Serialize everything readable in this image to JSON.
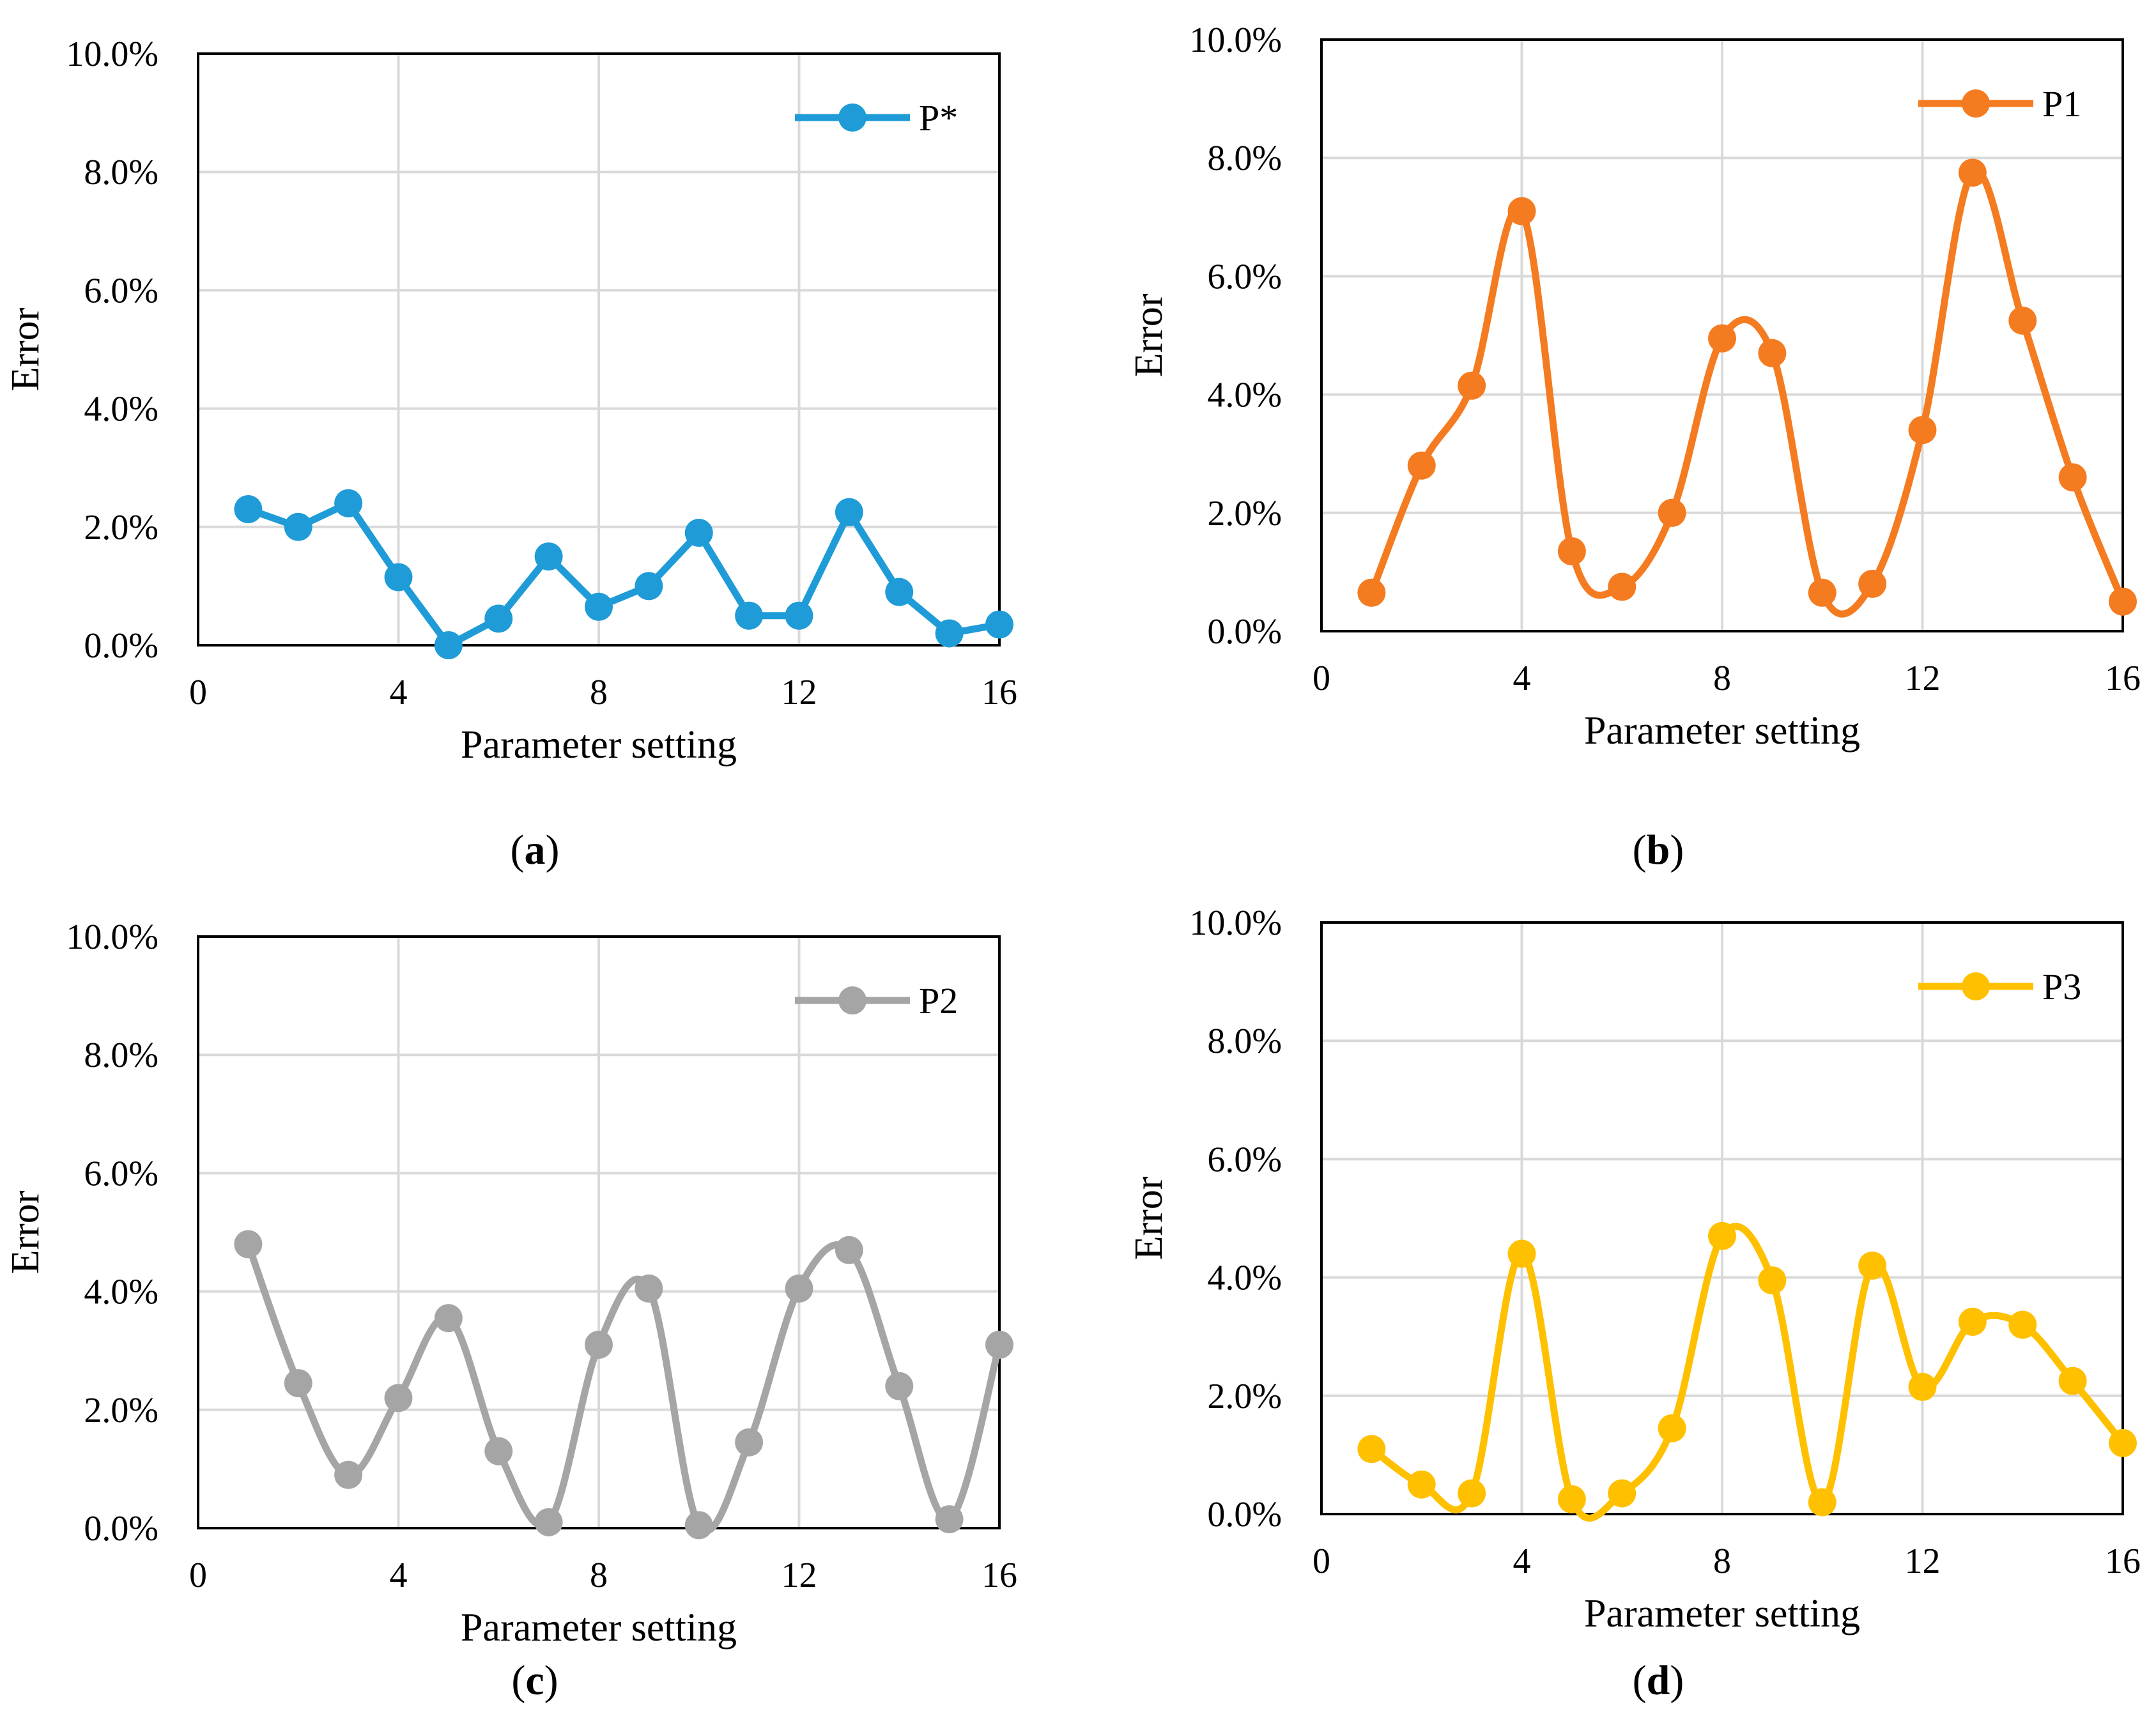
{
  "chart_data": [
    {
      "type": "line",
      "panel_label": "(a)",
      "panel_letter": "a",
      "xlabel": "Parameter setting",
      "ylabel": "Error",
      "xlim": [
        0,
        16
      ],
      "ylim": [
        0,
        10
      ],
      "xticks": [
        0,
        4,
        8,
        12,
        16
      ],
      "yticks": [
        0,
        2,
        4,
        6,
        8,
        10
      ],
      "ytick_labels": [
        "0.0%",
        "2.0%",
        "4.0%",
        "6.0%",
        "8.0%",
        "10.0%"
      ],
      "legend_position": "top-right",
      "grid": true,
      "smooth": false,
      "series": [
        {
          "name": "P*",
          "color": "#1f9bd7",
          "x": [
            1,
            2,
            3,
            4,
            5,
            6,
            7,
            8,
            9,
            10,
            11,
            12,
            13,
            14,
            15,
            16
          ],
          "values": [
            2.3,
            2.0,
            2.4,
            1.15,
            0.0,
            0.45,
            1.5,
            0.65,
            1.0,
            1.9,
            0.5,
            0.5,
            2.25,
            0.9,
            0.2,
            0.35
          ]
        }
      ]
    },
    {
      "type": "line",
      "panel_label": "(b)",
      "panel_letter": "b",
      "xlabel": "Parameter setting",
      "ylabel": "Error",
      "xlim": [
        0,
        16
      ],
      "ylim": [
        0,
        10
      ],
      "xticks": [
        0,
        4,
        8,
        12,
        16
      ],
      "yticks": [
        0,
        2,
        4,
        6,
        8,
        10
      ],
      "ytick_labels": [
        "0.0%",
        "2.0%",
        "4.0%",
        "6.0%",
        "8.0%",
        "10.0%"
      ],
      "legend_position": "top-right",
      "grid": true,
      "smooth": true,
      "series": [
        {
          "name": "P1",
          "color": "#f47b20",
          "x": [
            1,
            2,
            3,
            4,
            5,
            6,
            7,
            8,
            9,
            10,
            11,
            12,
            13,
            14,
            15,
            16
          ],
          "values": [
            0.65,
            2.8,
            4.15,
            7.1,
            1.35,
            0.75,
            2.0,
            4.95,
            4.7,
            0.65,
            0.8,
            3.4,
            7.75,
            5.25,
            2.6,
            0.5
          ]
        }
      ]
    },
    {
      "type": "line",
      "panel_label": "(c)",
      "panel_letter": "c",
      "xlabel": "Parameter setting",
      "ylabel": "Error",
      "xlim": [
        0,
        16
      ],
      "ylim": [
        0,
        10
      ],
      "xticks": [
        0,
        4,
        8,
        12,
        16
      ],
      "yticks": [
        0,
        2,
        4,
        6,
        8,
        10
      ],
      "ytick_labels": [
        "0.0%",
        "2.0%",
        "4.0%",
        "6.0%",
        "8.0%",
        "10.0%"
      ],
      "legend_position": "top-right",
      "grid": true,
      "smooth": true,
      "series": [
        {
          "name": "P2",
          "color": "#a5a5a5",
          "x": [
            1,
            2,
            3,
            4,
            5,
            6,
            7,
            8,
            9,
            10,
            11,
            12,
            13,
            14,
            15,
            16
          ],
          "values": [
            4.8,
            2.45,
            0.9,
            2.2,
            3.55,
            1.3,
            0.1,
            3.1,
            4.05,
            0.05,
            1.45,
            4.05,
            4.7,
            2.4,
            0.15,
            3.1
          ]
        }
      ]
    },
    {
      "type": "line",
      "panel_label": "(d)",
      "panel_letter": "d",
      "xlabel": "Parameter setting",
      "ylabel": "Error",
      "xlim": [
        0,
        16
      ],
      "ylim": [
        0,
        10
      ],
      "xticks": [
        0,
        4,
        8,
        12,
        16
      ],
      "yticks": [
        0,
        2,
        4,
        6,
        8,
        10
      ],
      "ytick_labels": [
        "0.0%",
        "2.0%",
        "4.0%",
        "6.0%",
        "8.0%",
        "10.0%"
      ],
      "legend_position": "top-right",
      "grid": true,
      "smooth": true,
      "series": [
        {
          "name": "P3",
          "color": "#ffc000",
          "x": [
            1,
            2,
            3,
            4,
            5,
            6,
            7,
            8,
            9,
            10,
            11,
            12,
            13,
            14,
            15,
            16
          ],
          "values": [
            1.1,
            0.5,
            0.35,
            4.4,
            0.25,
            0.35,
            1.45,
            4.7,
            3.95,
            0.2,
            4.2,
            2.15,
            3.25,
            3.2,
            2.25,
            1.2
          ]
        }
      ]
    }
  ]
}
